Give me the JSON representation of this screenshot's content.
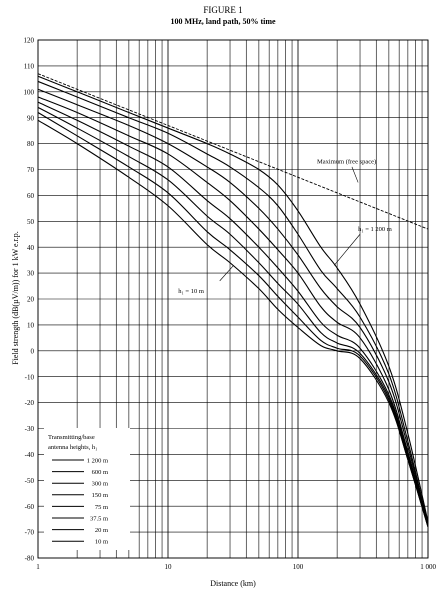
{
  "figure": {
    "title": "FIGURE 1",
    "subtitle": "100 MHz, land path, 50% time"
  },
  "chart_data": {
    "type": "line",
    "xlabel": "Distance (km)",
    "ylabel": "Field strength (dB(µV/m)) for 1 kW e.r.p.",
    "x_scale": "log",
    "xlim": [
      1,
      1000
    ],
    "ylim": [
      -80,
      120
    ],
    "y_ticks": [
      120,
      110,
      100,
      90,
      80,
      70,
      60,
      50,
      40,
      30,
      20,
      10,
      0,
      -10,
      -20,
      -30,
      -40,
      -50,
      -60,
      -70,
      -80
    ],
    "x_tick_labels": [
      {
        "value": 1,
        "label": "1"
      },
      {
        "value": 10,
        "label": "10"
      },
      {
        "value": 100,
        "label": "100"
      },
      {
        "value": 1000,
        "label": "1 000"
      }
    ],
    "grid": true,
    "legend": {
      "title_line1": "Transmitting/base",
      "title_line2": "antenna heights, h₁",
      "placement": "bottom-left"
    },
    "annotations": {
      "free_space": "Maximum (free space)",
      "h1200": "h₁ = 1 200 m",
      "h10": "h₁ = 10 m"
    },
    "series": [
      {
        "name": "Maximum (free space)",
        "style": "dashed",
        "points": [
          [
            1,
            107
          ],
          [
            1000,
            47
          ]
        ]
      },
      {
        "name": "1 200 m",
        "points": [
          [
            1,
            106
          ],
          [
            2,
            100
          ],
          [
            5,
            92
          ],
          [
            10,
            86
          ],
          [
            20,
            80
          ],
          [
            30,
            76
          ],
          [
            50,
            70
          ],
          [
            70,
            64
          ],
          [
            100,
            54
          ],
          [
            150,
            40
          ],
          [
            200,
            32
          ],
          [
            300,
            18
          ],
          [
            500,
            -6
          ],
          [
            700,
            -32
          ],
          [
            1000,
            -66
          ]
        ]
      },
      {
        "name": "600 m",
        "points": [
          [
            1,
            104
          ],
          [
            2,
            98
          ],
          [
            5,
            90
          ],
          [
            10,
            84
          ],
          [
            20,
            76
          ],
          [
            30,
            71
          ],
          [
            50,
            63
          ],
          [
            70,
            56
          ],
          [
            100,
            45
          ],
          [
            150,
            31
          ],
          [
            200,
            24
          ],
          [
            300,
            13
          ],
          [
            500,
            -9
          ],
          [
            700,
            -35
          ],
          [
            1000,
            -67
          ]
        ]
      },
      {
        "name": "300 m",
        "points": [
          [
            1,
            101
          ],
          [
            2,
            95
          ],
          [
            5,
            87
          ],
          [
            10,
            80
          ],
          [
            20,
            71
          ],
          [
            30,
            65
          ],
          [
            50,
            55
          ],
          [
            70,
            47
          ],
          [
            100,
            37
          ],
          [
            150,
            24
          ],
          [
            200,
            17
          ],
          [
            300,
            9
          ],
          [
            500,
            -12
          ],
          [
            700,
            -37
          ],
          [
            1000,
            -67
          ]
        ]
      },
      {
        "name": "150 m",
        "points": [
          [
            1,
            98
          ],
          [
            2,
            92
          ],
          [
            5,
            83
          ],
          [
            10,
            76
          ],
          [
            20,
            65
          ],
          [
            30,
            58
          ],
          [
            50,
            47
          ],
          [
            70,
            39
          ],
          [
            100,
            30
          ],
          [
            150,
            17
          ],
          [
            200,
            11
          ],
          [
            300,
            5
          ],
          [
            500,
            -15
          ],
          [
            700,
            -39
          ],
          [
            1000,
            -67
          ]
        ]
      },
      {
        "name": "75 m",
        "points": [
          [
            1,
            96
          ],
          [
            2,
            89
          ],
          [
            5,
            79
          ],
          [
            10,
            71
          ],
          [
            20,
            58
          ],
          [
            30,
            51
          ],
          [
            50,
            40
          ],
          [
            70,
            32
          ],
          [
            100,
            23
          ],
          [
            150,
            11
          ],
          [
            200,
            6
          ],
          [
            300,
            1
          ],
          [
            500,
            -17
          ],
          [
            700,
            -40
          ],
          [
            1000,
            -67
          ]
        ]
      },
      {
        "name": "37.5 m",
        "points": [
          [
            1,
            94
          ],
          [
            2,
            86
          ],
          [
            5,
            75
          ],
          [
            10,
            66
          ],
          [
            20,
            52
          ],
          [
            30,
            45
          ],
          [
            50,
            34
          ],
          [
            70,
            26
          ],
          [
            100,
            18
          ],
          [
            150,
            7
          ],
          [
            200,
            3
          ],
          [
            300,
            -1
          ],
          [
            500,
            -18
          ],
          [
            700,
            -41
          ],
          [
            1000,
            -67
          ]
        ]
      },
      {
        "name": "20 m",
        "points": [
          [
            1,
            92
          ],
          [
            2,
            83
          ],
          [
            5,
            71
          ],
          [
            10,
            61
          ],
          [
            20,
            46
          ],
          [
            30,
            39
          ],
          [
            50,
            29
          ],
          [
            70,
            21
          ],
          [
            100,
            13
          ],
          [
            150,
            4
          ],
          [
            200,
            1
          ],
          [
            300,
            -2
          ],
          [
            500,
            -19
          ],
          [
            700,
            -42
          ],
          [
            1000,
            -68
          ]
        ]
      },
      {
        "name": "10 m",
        "points": [
          [
            1,
            89
          ],
          [
            2,
            80
          ],
          [
            5,
            67
          ],
          [
            10,
            56
          ],
          [
            20,
            41
          ],
          [
            30,
            34
          ],
          [
            50,
            24
          ],
          [
            70,
            16
          ],
          [
            100,
            9
          ],
          [
            150,
            2
          ],
          [
            200,
            0
          ],
          [
            300,
            -3
          ],
          [
            500,
            -20
          ],
          [
            700,
            -42
          ],
          [
            1000,
            -68
          ]
        ]
      }
    ]
  }
}
